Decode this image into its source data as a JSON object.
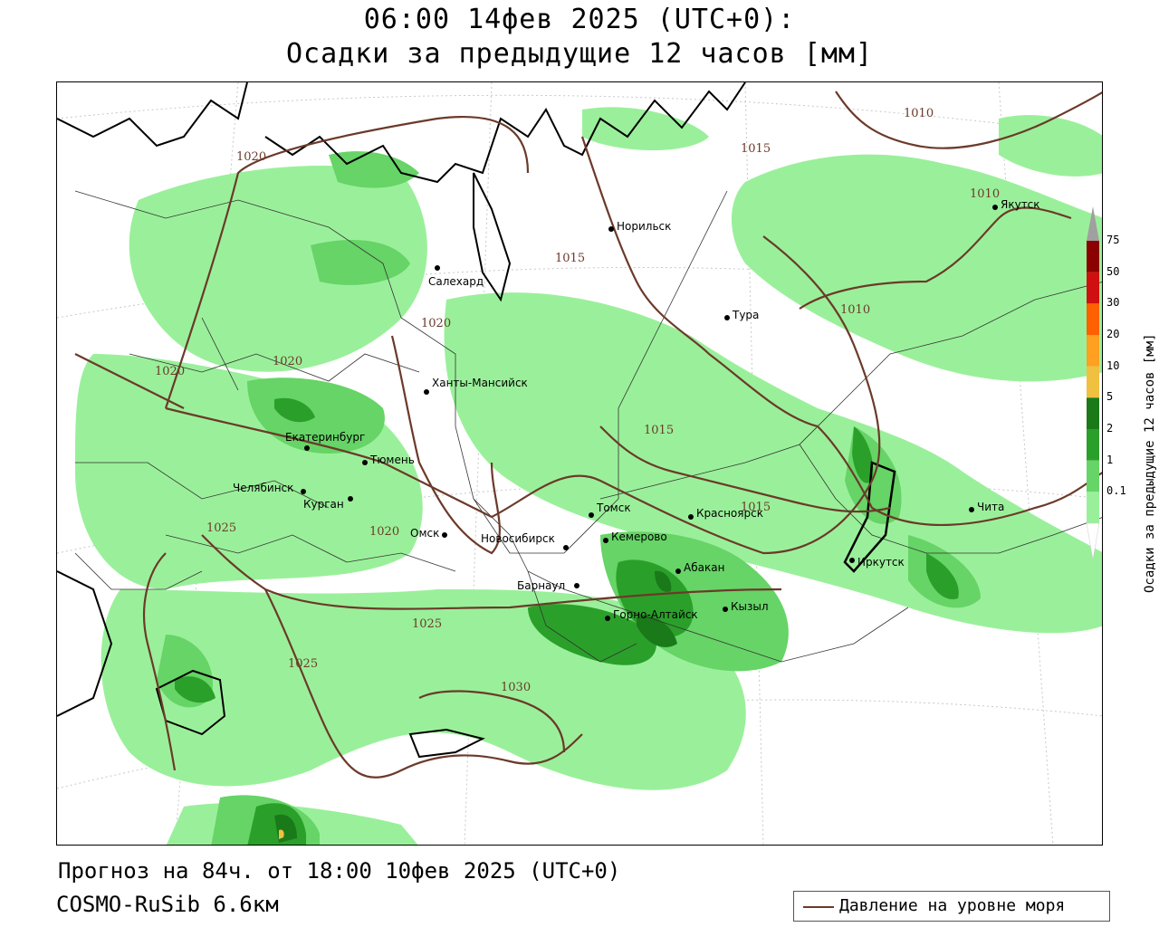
{
  "header": {
    "line1": "06:00 14фев 2025 (UTC+0):",
    "line2": "Осадки за предыдущие 12 часов [мм]"
  },
  "footer": {
    "forecast": "Прогноз на 84ч. от 18:00 10фев 2025 (UTC+0)",
    "model": "COSMO-RuSib 6.6км"
  },
  "legend": {
    "pressure_label": "Давление на уровне моря",
    "pressure_color": "#6b3a2a"
  },
  "colorbar": {
    "title": "Осадки за предыдущие 12 часов [мм]",
    "levels": [
      "75",
      "50",
      "30",
      "20",
      "10",
      "5",
      "2",
      "1",
      "0.1"
    ],
    "colors": [
      "#8b0000",
      "#d01010",
      "#ff6000",
      "#ffa020",
      "#f0c040",
      "#1a7a1a",
      "#2aa02a",
      "#66d466",
      "#9af09a"
    ],
    "overflow_color": "#a0a0a0"
  },
  "cities": [
    {
      "name": "Норильск"
    },
    {
      "name": "Салехард"
    },
    {
      "name": "Тура"
    },
    {
      "name": "Якутск"
    },
    {
      "name": "Ханты-Мансийск"
    },
    {
      "name": "Екатеринбург"
    },
    {
      "name": "Тюмень"
    },
    {
      "name": "Челябинск"
    },
    {
      "name": "Курган"
    },
    {
      "name": "Омск"
    },
    {
      "name": "Новосибирск"
    },
    {
      "name": "Томск"
    },
    {
      "name": "Кемерово"
    },
    {
      "name": "Красноярск"
    },
    {
      "name": "Барнаул"
    },
    {
      "name": "Абакан"
    },
    {
      "name": "Горно-Алтайск"
    },
    {
      "name": "Кызыл"
    },
    {
      "name": "Иркутск"
    },
    {
      "name": "Чита"
    }
  ],
  "isobars": [
    "1010",
    "1015",
    "1010",
    "1015",
    "1020",
    "1020",
    "1020",
    "1010",
    "1015",
    "1015",
    "1025",
    "1020",
    "1025",
    "1025",
    "1030",
    "1020"
  ]
}
